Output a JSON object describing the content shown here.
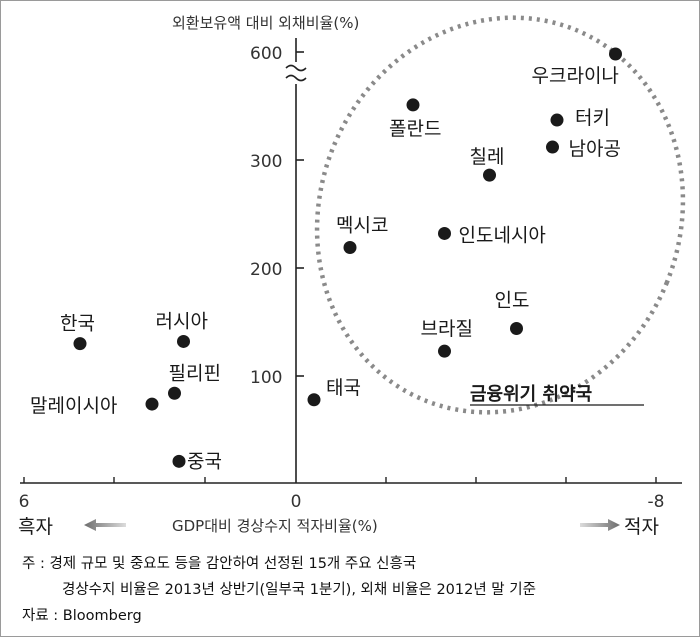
{
  "chart_data": {
    "type": "scatter",
    "ylabel": "외환보유액 대비 외채비율(%)",
    "xlabel": "GDP대비 경상수지 적자비율(%)",
    "x_ticks": [
      "6",
      "0",
      "-8"
    ],
    "y_ticks": [
      "600",
      "300",
      "200",
      "100"
    ],
    "x_range": [
      6,
      -8
    ],
    "y_range": [
      0,
      600
    ],
    "y_axis_break": "between 300 and 600",
    "left_direction_label": "흑자",
    "right_direction_label": "적자",
    "group_label": "금융위기 취약국",
    "points": [
      {
        "name": "우크라이나",
        "x": -7.1,
        "y": 600
      },
      {
        "name": "폴란드",
        "x": -2.6,
        "y": 351
      },
      {
        "name": "터키",
        "x": -5.8,
        "y": 337
      },
      {
        "name": "남아공",
        "x": -5.7,
        "y": 312
      },
      {
        "name": "칠레",
        "x": -4.3,
        "y": 286
      },
      {
        "name": "멕시코",
        "x": -1.2,
        "y": 219
      },
      {
        "name": "인도네시아",
        "x": -3.3,
        "y": 232
      },
      {
        "name": "인도",
        "x": -4.9,
        "y": 144
      },
      {
        "name": "브라질",
        "x": -3.3,
        "y": 123
      },
      {
        "name": "한국",
        "x": 4.8,
        "y": 130
      },
      {
        "name": "러시아",
        "x": 2.5,
        "y": 132
      },
      {
        "name": "필리핀",
        "x": 2.7,
        "y": 84
      },
      {
        "name": "말레이시아",
        "x": 3.2,
        "y": 74
      },
      {
        "name": "태국",
        "x": -0.4,
        "y": 78
      },
      {
        "name": "중국",
        "x": 2.6,
        "y": 21
      }
    ]
  },
  "notes": {
    "line1": "주 : 경제 규모 및 중요도 등을 감안하여 선정된 15개 주요 신흥국",
    "line2": "경상수지 비율은 2013년 상반기(일부국 1분기),  외채 비율은 2012년 말 기준",
    "source": "자료 : Bloomberg"
  },
  "colors": {
    "point": "#1a1a1a",
    "ellipse": "#8a8a8a",
    "arrow": "#999999"
  }
}
